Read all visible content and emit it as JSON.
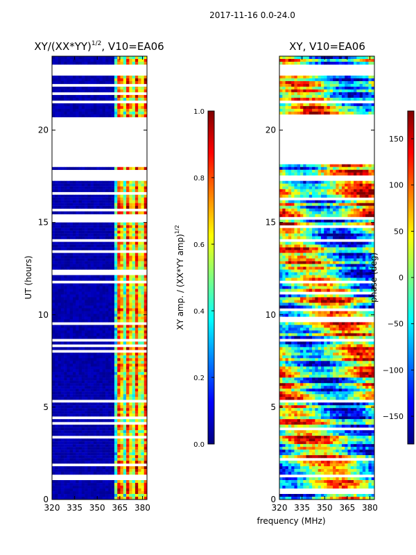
{
  "suptitle": "2017-11-16 0.0-24.0",
  "xlabel_shared": "frequency (MHz)",
  "colors": {
    "jet": [
      "#00007f",
      "#0000ff",
      "#007fff",
      "#00ffff",
      "#7fff7f",
      "#ffff00",
      "#ff7f00",
      "#ff0000",
      "#7f0000"
    ],
    "background": "#ffffff",
    "axis": "#000000"
  },
  "chart_data": [
    {
      "type": "heatmap",
      "title": "XY/(XX*YY)",
      "title_exponent": "1/2",
      "title_suffix": ", V10=EA06",
      "xlabel": "",
      "ylabel": "UT (hours)",
      "xlim": [
        320,
        383
      ],
      "ylim": [
        0,
        24
      ],
      "xticks": [
        320,
        335,
        350,
        365,
        380
      ],
      "yticks": [
        0,
        5,
        10,
        15,
        20
      ],
      "blank_hours": [
        [
          1.2,
          1.4
        ],
        [
          18.2,
          20.6
        ],
        [
          23.0,
          23.5
        ]
      ],
      "colorbar": {
        "label": "XY amp. / (XX*YY amp)",
        "label_exponent": "1/2",
        "range": [
          0.0,
          1.0
        ],
        "ticks": [
          "0.0",
          "0.2",
          "0.4",
          "0.6",
          "0.8",
          "1.0"
        ]
      }
    },
    {
      "type": "heatmap",
      "title": "XY, V10=EA06",
      "xlabel": "frequency (MHz)",
      "ylabel": "",
      "xlim": [
        320,
        383
      ],
      "ylim": [
        0,
        24
      ],
      "xticks": [
        320,
        335,
        350,
        365,
        380
      ],
      "yticks": [
        0,
        5,
        10,
        15,
        20
      ],
      "blank_hours": [
        [
          1.2,
          1.4
        ],
        [
          18.2,
          20.6
        ],
        [
          23.0,
          23.5
        ]
      ],
      "colorbar": {
        "label": "phase (deg)",
        "range": [
          -180,
          180
        ],
        "ticks": [
          "−150",
          "−100",
          "−50",
          "0",
          "50",
          "100",
          "150"
        ],
        "tick_values": [
          -150,
          -100,
          -50,
          0,
          50,
          100,
          150
        ]
      }
    }
  ]
}
